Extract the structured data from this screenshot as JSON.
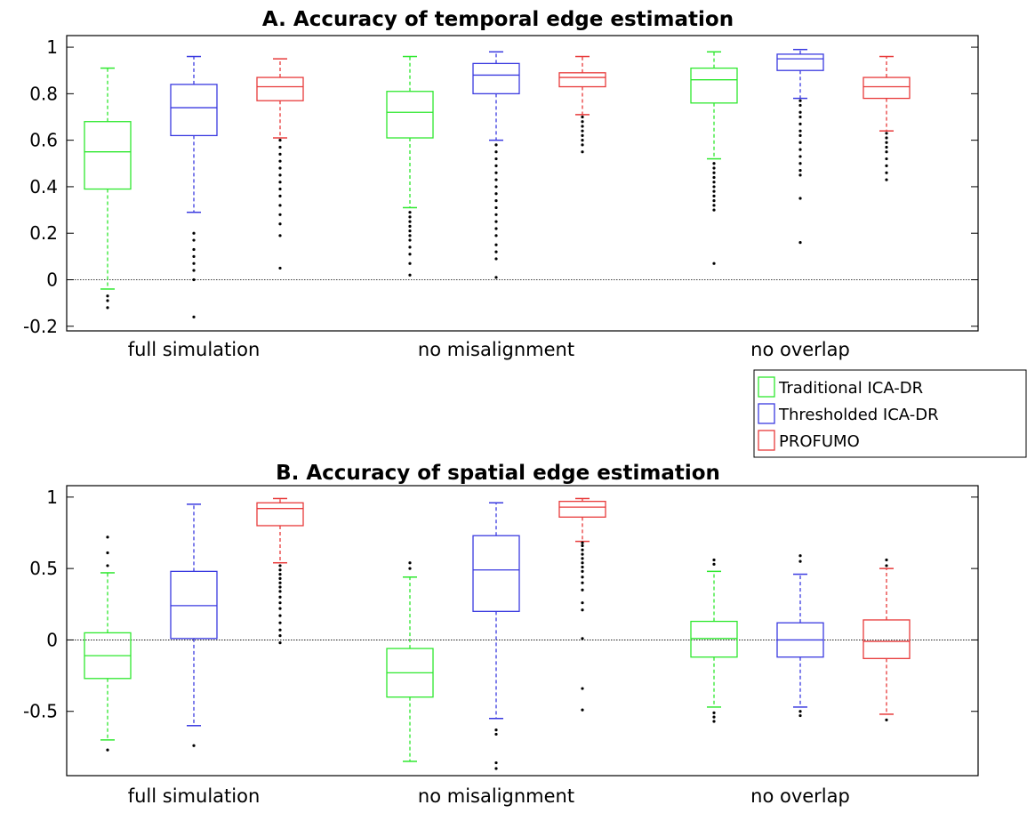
{
  "chart_data": [
    {
      "type": "box",
      "title": "A. Accuracy of temporal edge estimation",
      "xlabel": "",
      "ylabel": "",
      "ylim": [
        -0.22,
        1.05
      ],
      "yticks": [
        -0.2,
        0,
        0.2,
        0.4,
        0.6,
        0.8,
        1
      ],
      "ytick_labels": [
        "-0.2",
        "0",
        "0.2",
        "0.4",
        "0.6",
        "0.8",
        "1"
      ],
      "categories": [
        "full simulation",
        "no misalignment",
        "no overlap"
      ],
      "zero_line": true,
      "grid": false,
      "series": [
        {
          "name": "Traditional ICA-DR",
          "color": "#2ee82e",
          "stats": [
            {
              "whisker_low": -0.04,
              "q1": 0.39,
              "median": 0.55,
              "q3": 0.68,
              "whisker_high": 0.91,
              "outliers": [
                -0.07,
                -0.09,
                -0.12
              ]
            },
            {
              "whisker_low": 0.31,
              "q1": 0.61,
              "median": 0.72,
              "q3": 0.81,
              "whisker_high": 0.96,
              "outliers": [
                0.29,
                0.27,
                0.25,
                0.23,
                0.21,
                0.19,
                0.17,
                0.14,
                0.11,
                0.07,
                0.02
              ]
            },
            {
              "whisker_low": 0.52,
              "q1": 0.76,
              "median": 0.86,
              "q3": 0.91,
              "whisker_high": 0.98,
              "outliers": [
                0.5,
                0.48,
                0.46,
                0.44,
                0.42,
                0.4,
                0.38,
                0.36,
                0.34,
                0.32,
                0.3,
                0.07
              ]
            }
          ]
        },
        {
          "name": "Thresholded ICA-DR",
          "color": "#3a3ae0",
          "stats": [
            {
              "whisker_low": 0.29,
              "q1": 0.62,
              "median": 0.74,
              "q3": 0.84,
              "whisker_high": 0.96,
              "outliers": [
                0.2,
                0.17,
                0.13,
                0.1,
                0.07,
                0.04,
                0.0,
                -0.16
              ]
            },
            {
              "whisker_low": 0.6,
              "q1": 0.8,
              "median": 0.88,
              "q3": 0.93,
              "whisker_high": 0.98,
              "outliers": [
                0.58,
                0.55,
                0.52,
                0.49,
                0.46,
                0.43,
                0.4,
                0.37,
                0.34,
                0.31,
                0.28,
                0.25,
                0.22,
                0.19,
                0.15,
                0.12,
                0.09,
                0.01
              ]
            },
            {
              "whisker_low": 0.78,
              "q1": 0.9,
              "median": 0.95,
              "q3": 0.97,
              "whisker_high": 0.99,
              "outliers": [
                0.77,
                0.75,
                0.72,
                0.7,
                0.67,
                0.64,
                0.62,
                0.59,
                0.56,
                0.53,
                0.5,
                0.47,
                0.45,
                0.35,
                0.16
              ]
            }
          ]
        },
        {
          "name": "PROFUMO",
          "color": "#e83a3a",
          "stats": [
            {
              "whisker_low": 0.61,
              "q1": 0.77,
              "median": 0.83,
              "q3": 0.87,
              "whisker_high": 0.95,
              "outliers": [
                0.6,
                0.57,
                0.54,
                0.51,
                0.48,
                0.45,
                0.42,
                0.39,
                0.36,
                0.32,
                0.28,
                0.24,
                0.19,
                0.05
              ]
            },
            {
              "whisker_low": 0.71,
              "q1": 0.83,
              "median": 0.87,
              "q3": 0.89,
              "whisker_high": 0.96,
              "outliers": [
                0.7,
                0.68,
                0.66,
                0.64,
                0.62,
                0.6,
                0.58,
                0.55
              ]
            },
            {
              "whisker_low": 0.64,
              "q1": 0.78,
              "median": 0.83,
              "q3": 0.87,
              "whisker_high": 0.96,
              "outliers": [
                0.63,
                0.61,
                0.59,
                0.57,
                0.55,
                0.52,
                0.49,
                0.46,
                0.43
              ]
            }
          ]
        }
      ]
    },
    {
      "type": "box",
      "title": "B. Accuracy of spatial edge estimation",
      "xlabel": "",
      "ylabel": "",
      "ylim": [
        -0.95,
        1.08
      ],
      "yticks": [
        -0.5,
        0,
        0.5,
        1
      ],
      "ytick_labels": [
        "-0.5",
        "0",
        "0.5",
        "1"
      ],
      "categories": [
        "full simulation",
        "no misalignment",
        "no overlap"
      ],
      "zero_line": true,
      "grid": false,
      "series": [
        {
          "name": "Traditional ICA-DR",
          "color": "#2ee82e",
          "stats": [
            {
              "whisker_low": -0.7,
              "q1": -0.27,
              "median": -0.11,
              "q3": 0.05,
              "whisker_high": 0.47,
              "outliers": [
                0.52,
                0.61,
                0.72,
                -0.77
              ]
            },
            {
              "whisker_low": -0.85,
              "q1": -0.4,
              "median": -0.23,
              "q3": -0.06,
              "whisker_high": 0.44,
              "outliers": [
                0.5,
                0.54
              ]
            },
            {
              "whisker_low": -0.47,
              "q1": -0.12,
              "median": 0.01,
              "q3": 0.13,
              "whisker_high": 0.48,
              "outliers": [
                0.53,
                0.56,
                -0.51,
                -0.54,
                -0.57
              ]
            }
          ]
        },
        {
          "name": "Thresholded ICA-DR",
          "color": "#3a3ae0",
          "stats": [
            {
              "whisker_low": -0.6,
              "q1": 0.01,
              "median": 0.24,
              "q3": 0.48,
              "whisker_high": 0.95,
              "outliers": [
                -0.74
              ]
            },
            {
              "whisker_low": -0.55,
              "q1": 0.2,
              "median": 0.49,
              "q3": 0.73,
              "whisker_high": 0.96,
              "outliers": [
                -0.63,
                -0.66,
                -0.86,
                -0.9
              ]
            },
            {
              "whisker_low": -0.47,
              "q1": -0.12,
              "median": 0.0,
              "q3": 0.12,
              "whisker_high": 0.46,
              "outliers": [
                0.55,
                0.59,
                -0.5,
                -0.53
              ]
            }
          ]
        },
        {
          "name": "PROFUMO",
          "color": "#e83a3a",
          "stats": [
            {
              "whisker_low": 0.54,
              "q1": 0.8,
              "median": 0.92,
              "q3": 0.96,
              "whisker_high": 0.99,
              "outliers": [
                0.52,
                0.49,
                0.46,
                0.43,
                0.4,
                0.37,
                0.34,
                0.3,
                0.26,
                0.22,
                0.17,
                0.12,
                0.07,
                0.03,
                -0.02
              ]
            },
            {
              "whisker_low": 0.69,
              "q1": 0.86,
              "median": 0.93,
              "q3": 0.97,
              "whisker_high": 0.99,
              "outliers": [
                0.68,
                0.66,
                0.63,
                0.6,
                0.57,
                0.54,
                0.51,
                0.48,
                0.44,
                0.4,
                0.35,
                0.26,
                0.21,
                0.01,
                -0.34,
                -0.49
              ]
            },
            {
              "whisker_low": -0.52,
              "q1": -0.13,
              "median": -0.01,
              "q3": 0.14,
              "whisker_high": 0.5,
              "outliers": [
                0.52,
                0.56,
                -0.56
              ]
            }
          ]
        }
      ]
    }
  ],
  "legend": {
    "items": [
      {
        "label": "Traditional ICA-DR",
        "color": "#2ee82e"
      },
      {
        "label": "Thresholded ICA-DR",
        "color": "#3a3ae0"
      },
      {
        "label": "PROFUMO",
        "color": "#e83a3a"
      }
    ]
  }
}
